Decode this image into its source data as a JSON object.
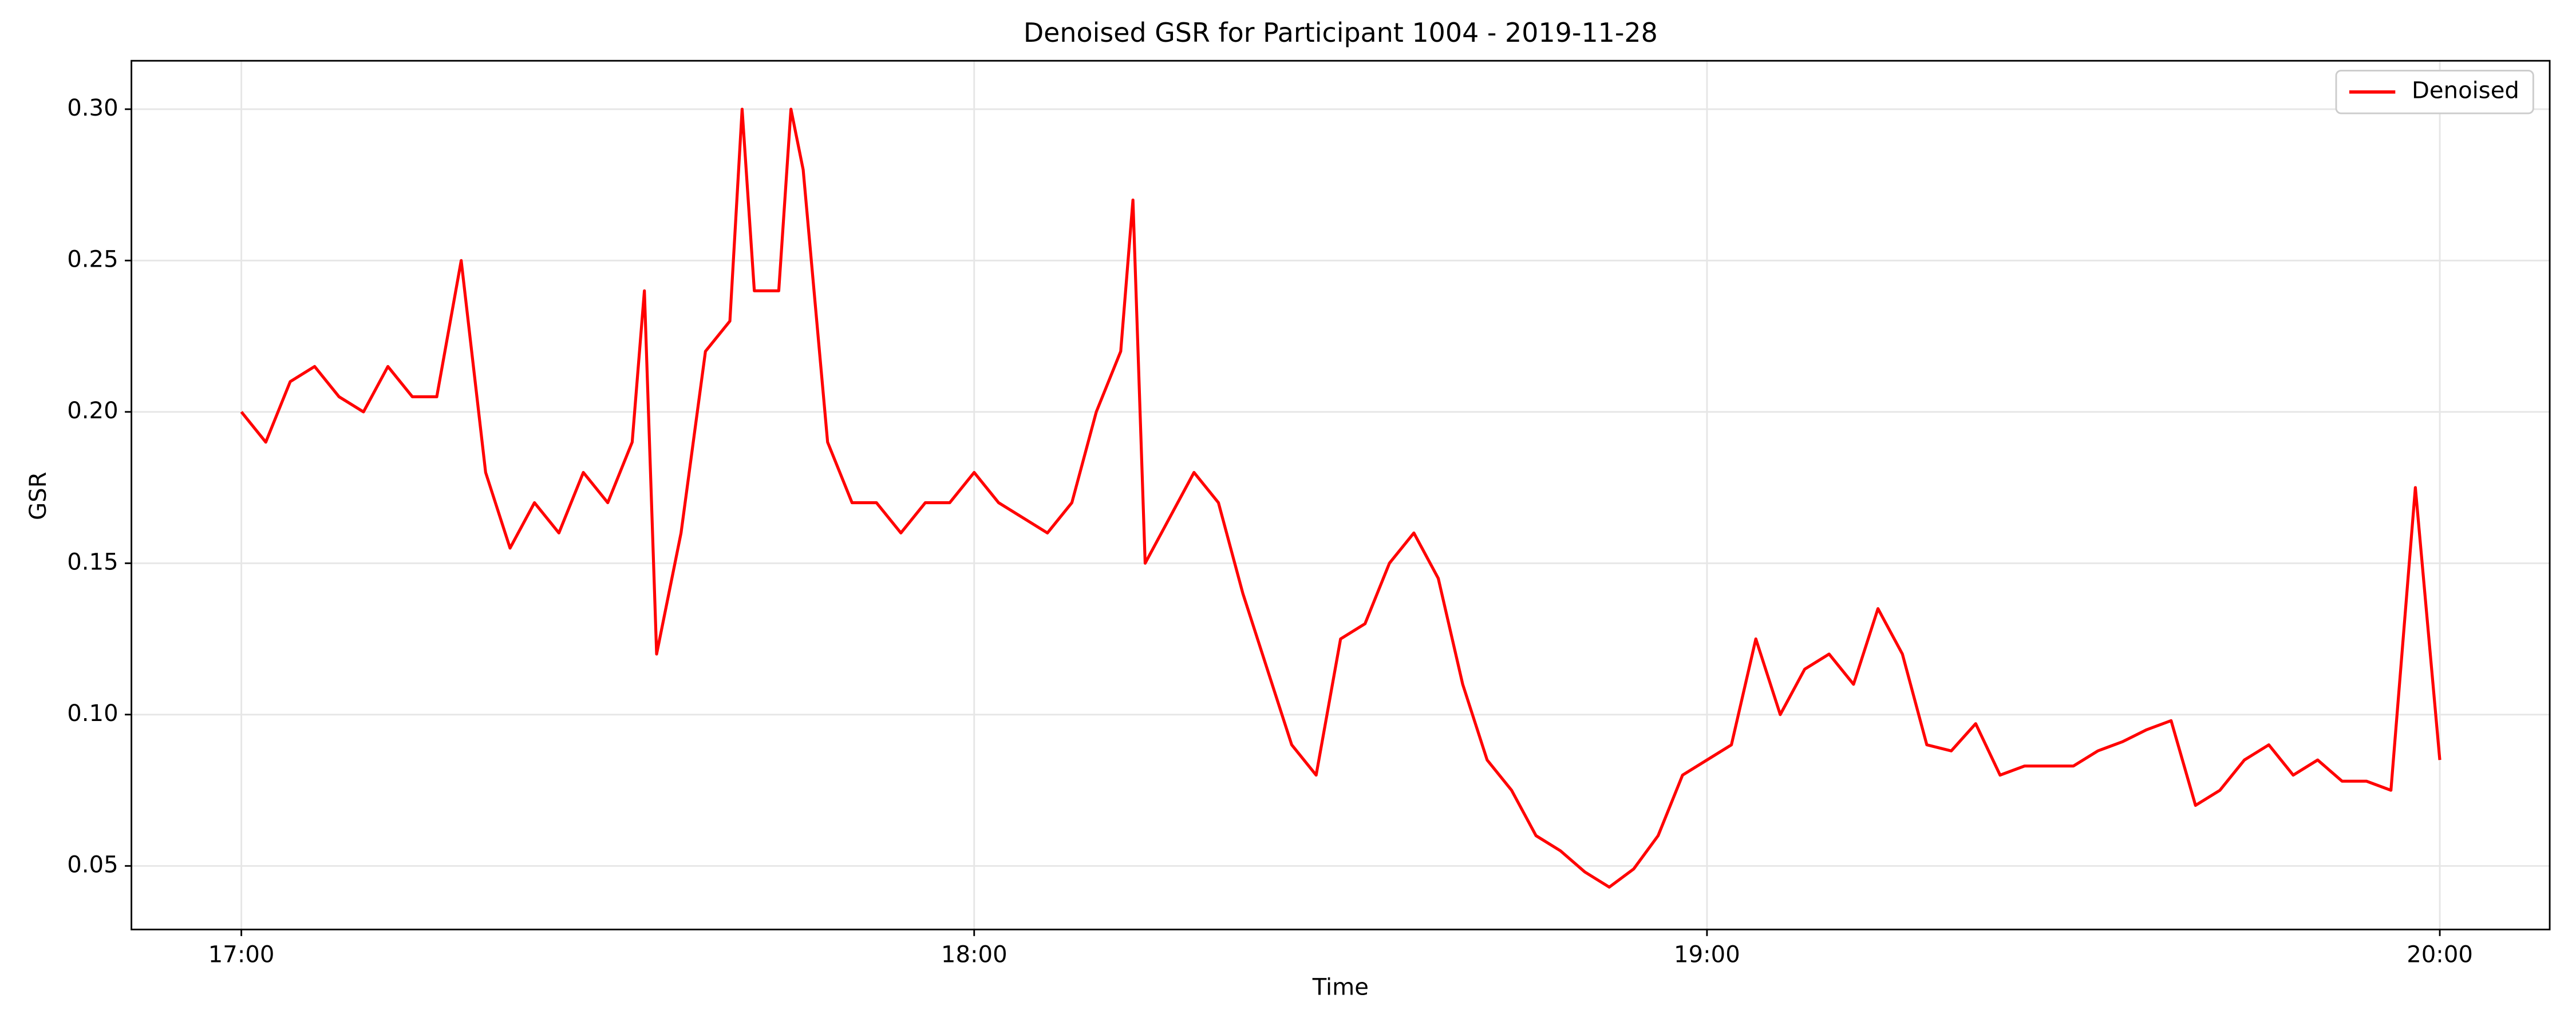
{
  "chart_data": {
    "type": "line",
    "title": "Denoised GSR for Participant 1004 - 2019-11-28",
    "xlabel": "Time",
    "ylabel": "GSR",
    "x": [
      "17:00",
      "17:02",
      "17:04",
      "17:06",
      "17:08",
      "17:10",
      "17:12",
      "17:14",
      "17:16",
      "17:18",
      "17:20",
      "17:22",
      "17:24",
      "17:26",
      "17:28",
      "17:30",
      "17:32",
      "17:33",
      "17:34",
      "17:36",
      "17:38",
      "17:40",
      "17:41",
      "17:42",
      "17:44",
      "17:45",
      "17:46",
      "17:48",
      "17:50",
      "17:52",
      "17:54",
      "17:56",
      "17:58",
      "18:00",
      "18:02",
      "18:04",
      "18:06",
      "18:08",
      "18:10",
      "18:12",
      "18:13",
      "18:14",
      "18:16",
      "18:18",
      "18:20",
      "18:22",
      "18:24",
      "18:26",
      "18:28",
      "18:30",
      "18:32",
      "18:34",
      "18:36",
      "18:38",
      "18:40",
      "18:42",
      "18:44",
      "18:46",
      "18:48",
      "18:50",
      "18:52",
      "18:54",
      "18:56",
      "18:58",
      "19:00",
      "19:02",
      "19:04",
      "19:06",
      "19:08",
      "19:10",
      "19:12",
      "19:14",
      "19:16",
      "19:18",
      "19:20",
      "19:22",
      "19:24",
      "19:26",
      "19:28",
      "19:30",
      "19:32",
      "19:34",
      "19:36",
      "19:38",
      "19:40",
      "19:42",
      "19:44",
      "19:46",
      "19:48",
      "19:50",
      "19:52",
      "19:54",
      "19:56",
      "19:58",
      "20:00"
    ],
    "series": [
      {
        "name": "Denoised",
        "color": "#ff0000",
        "values": [
          0.2,
          0.19,
          0.21,
          0.215,
          0.205,
          0.2,
          0.215,
          0.205,
          0.205,
          0.25,
          0.18,
          0.155,
          0.17,
          0.16,
          0.18,
          0.17,
          0.19,
          0.24,
          0.12,
          0.16,
          0.22,
          0.23,
          0.3,
          0.24,
          0.24,
          0.3,
          0.28,
          0.19,
          0.17,
          0.17,
          0.16,
          0.17,
          0.17,
          0.18,
          0.17,
          0.165,
          0.16,
          0.17,
          0.2,
          0.22,
          0.27,
          0.15,
          0.165,
          0.18,
          0.17,
          0.14,
          0.115,
          0.09,
          0.08,
          0.125,
          0.13,
          0.15,
          0.16,
          0.145,
          0.11,
          0.085,
          0.075,
          0.06,
          0.055,
          0.048,
          0.043,
          0.049,
          0.06,
          0.08,
          0.085,
          0.09,
          0.125,
          0.1,
          0.115,
          0.12,
          0.11,
          0.135,
          0.12,
          0.09,
          0.088,
          0.097,
          0.08,
          0.083,
          0.083,
          0.083,
          0.088,
          0.091,
          0.095,
          0.098,
          0.07,
          0.075,
          0.085,
          0.09,
          0.08,
          0.085,
          0.078,
          0.078,
          0.075,
          0.175,
          0.085
        ]
      }
    ],
    "xlim": [
      "16:51",
      "20:09"
    ],
    "xticks": [
      "17:00",
      "18:00",
      "19:00",
      "20:00"
    ],
    "ylim": [
      0.029,
      0.316
    ],
    "yticks": [
      0.05,
      {
        "value": 0.1,
        "label": "0.10"
      },
      0.15,
      {
        "value": 0.2,
        "label": "0.20"
      },
      0.25,
      {
        "value": 0.3,
        "label": "0.30"
      }
    ],
    "grid": true,
    "legend": "upper right"
  }
}
